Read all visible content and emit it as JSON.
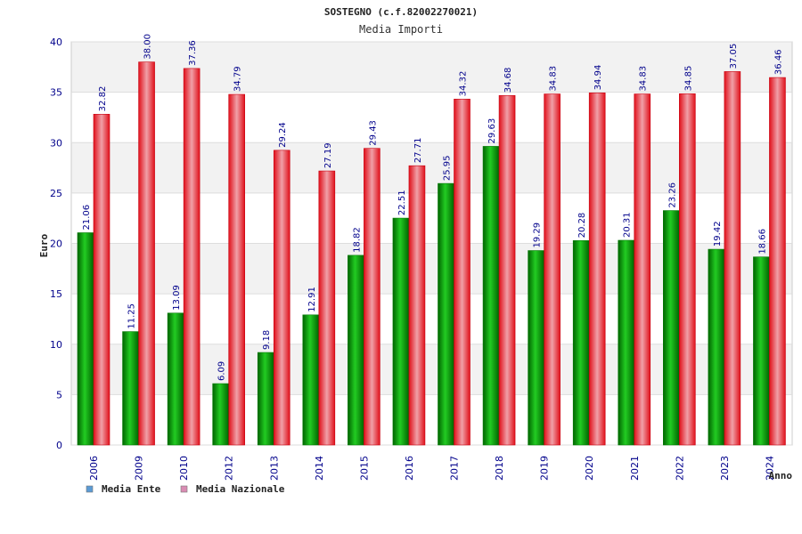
{
  "chart_data": {
    "type": "bar",
    "title": "SOSTEGNO (c.f.82002270021)",
    "subtitle": "Media Importi",
    "xlabel": "Anno",
    "ylabel": "Euro",
    "ylim": [
      0,
      40
    ],
    "yticks": [
      0,
      5,
      10,
      15,
      20,
      25,
      30,
      35,
      40
    ],
    "grid": true,
    "legend_position": "bottom-left",
    "categories": [
      "2006",
      "2009",
      "2010",
      "2012",
      "2013",
      "2014",
      "2015",
      "2016",
      "2017",
      "2018",
      "2019",
      "2020",
      "2021",
      "2022",
      "2023",
      "2024"
    ],
    "series": [
      {
        "name": "Media Ente",
        "color": "#00a800",
        "legend_color": "#5b9bd5",
        "values": [
          21.06,
          11.25,
          13.09,
          6.09,
          9.18,
          12.91,
          18.82,
          22.51,
          25.95,
          29.63,
          19.29,
          20.28,
          20.31,
          23.26,
          19.42,
          18.66
        ],
        "labels": [
          "21.06",
          "11.25",
          "13.09",
          "6.09",
          "9.18",
          "12.91",
          "18.82",
          "22.51",
          "25.95",
          "29.63",
          "19.29",
          "20.28",
          "20.31",
          "23.26",
          "19.42",
          "18.66"
        ]
      },
      {
        "name": "Media Nazionale",
        "color": "#e8101a",
        "legend_color": "#d98cb3",
        "values": [
          32.82,
          38.0,
          37.36,
          34.79,
          29.24,
          27.19,
          29.43,
          27.71,
          34.32,
          34.68,
          34.83,
          34.94,
          34.83,
          34.85,
          37.05,
          36.46
        ],
        "labels": [
          "32.82",
          "38.00",
          "37.36",
          "34.79",
          "29.24",
          "27.19",
          "29.43",
          "27.71",
          "34.32",
          "34.68",
          "34.83",
          "34.94",
          "34.83",
          "34.85",
          "37.05",
          "36.46"
        ]
      }
    ]
  }
}
